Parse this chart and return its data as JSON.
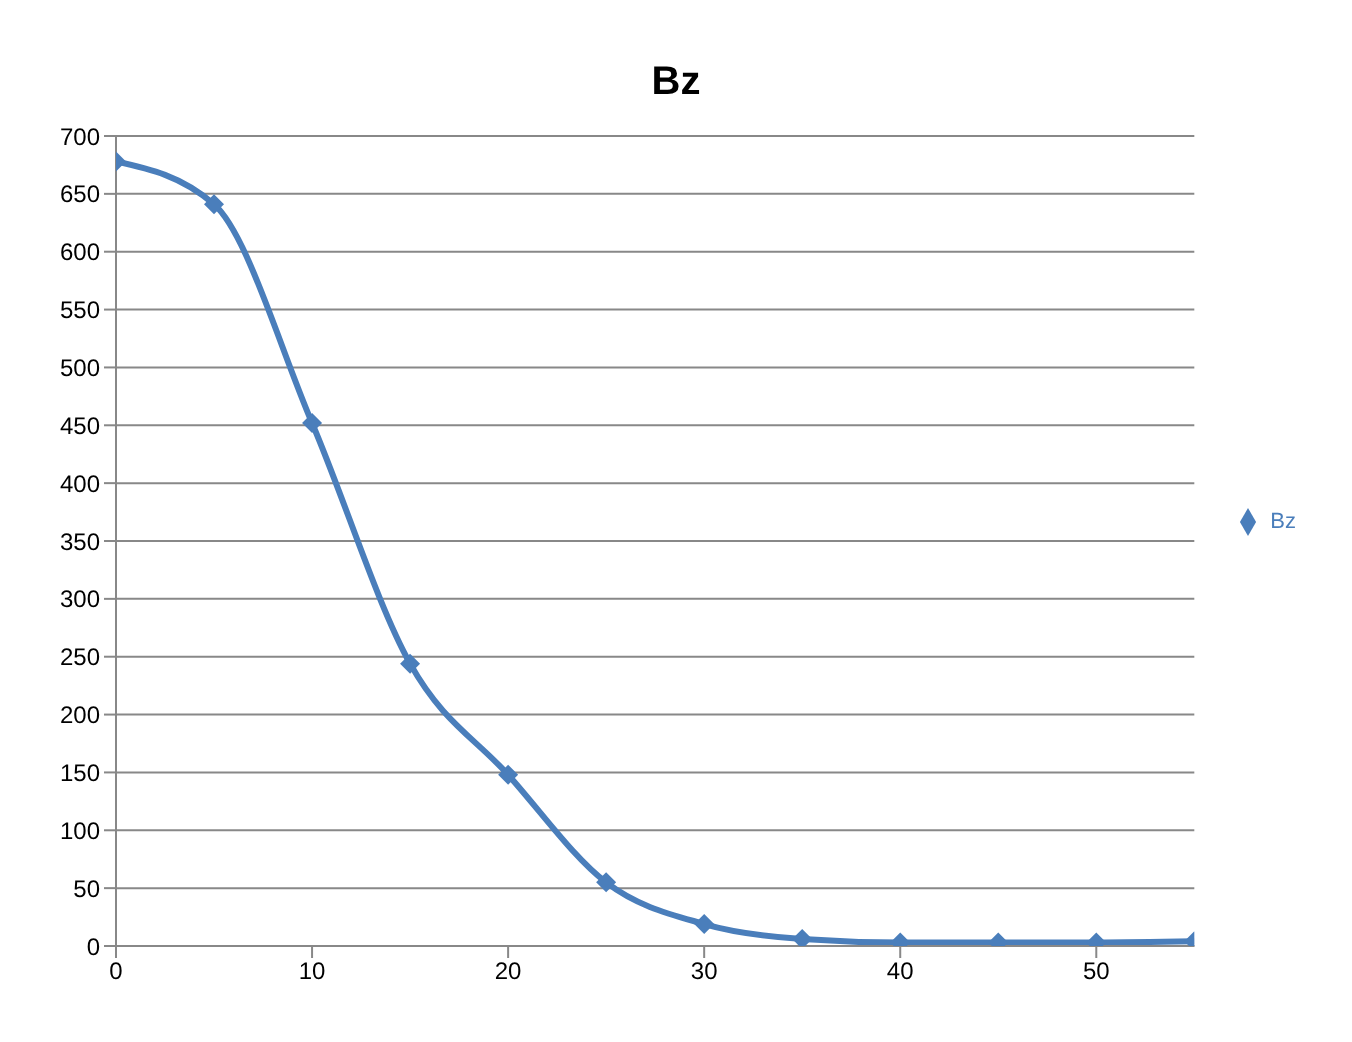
{
  "chart_data": {
    "type": "line",
    "title": "Bz",
    "x": [
      0,
      5,
      10,
      15,
      20,
      25,
      30,
      35,
      40,
      45,
      50,
      55
    ],
    "series": [
      {
        "name": "Bz",
        "color": "#4a7ebb",
        "values": [
          678,
          641,
          452,
          244,
          148,
          55,
          19,
          6,
          3,
          3,
          3,
          4
        ]
      }
    ],
    "xlim": [
      0,
      55
    ],
    "xticks": [
      0,
      10,
      20,
      30,
      40,
      50
    ],
    "ylim": [
      0,
      700
    ],
    "yticks": [
      0,
      50,
      100,
      150,
      200,
      250,
      300,
      350,
      400,
      450,
      500,
      550,
      600,
      650,
      700
    ],
    "grid": "y",
    "legend": "right",
    "marker": "diamond",
    "line_style": "solid"
  }
}
